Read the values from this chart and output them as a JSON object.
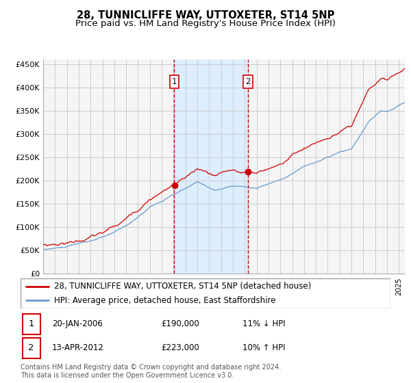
{
  "title": "28, TUNNICLIFFE WAY, UTTOXETER, ST14 5NP",
  "subtitle": "Price paid vs. HM Land Registry's House Price Index (HPI)",
  "legend_line1": "28, TUNNICLIFFE WAY, UTTOXETER, ST14 5NP (detached house)",
  "legend_line2": "HPI: Average price, detached house, East Staffordshire",
  "annotation1_date": "20-JAN-2006",
  "annotation1_price": "£190,000",
  "annotation1_hpi": "11% ↓ HPI",
  "annotation2_date": "13-APR-2012",
  "annotation2_price": "£223,000",
  "annotation2_hpi": "10% ↑ HPI",
  "footer": "Contains HM Land Registry data © Crown copyright and database right 2024.\nThis data is licensed under the Open Government Licence v3.0.",
  "sale1_year": 2006.05,
  "sale1_price": 190000,
  "sale2_year": 2012.28,
  "sale2_price": 223000,
  "ylim_min": 0,
  "ylim_max": 460000,
  "xlim_min": 1995.0,
  "xlim_max": 2025.5,
  "background_color": "#ffffff",
  "plot_bg_color": "#f5f5f5",
  "grid_color": "#cccccc",
  "hpi_line_color": "#6699cc",
  "property_line_color": "#cc0000",
  "sale_dot_color": "#cc0000",
  "vline_color": "#cc0000",
  "shade_color": "#ddeeff",
  "title_fontsize": 10.5,
  "subtitle_fontsize": 9.5,
  "axis_fontsize": 8,
  "legend_fontsize": 8.5,
  "annotation_fontsize": 8.5,
  "footer_fontsize": 7
}
